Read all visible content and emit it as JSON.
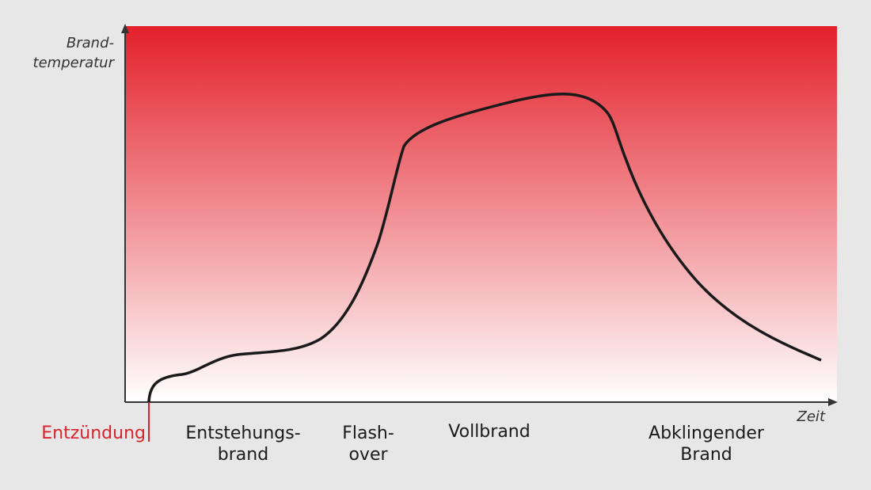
{
  "axes": {
    "y_label": [
      "Brand-",
      "temperatur"
    ],
    "x_label": "Zeit"
  },
  "phases": [
    {
      "lines": [
        "Entzündung"
      ]
    },
    {
      "lines": [
        "Entstehungs-",
        "brand"
      ]
    },
    {
      "lines": [
        "Flash-",
        "over"
      ]
    },
    {
      "lines": [
        "Vollbrand"
      ]
    },
    {
      "lines": [
        "Abklingender",
        "Brand"
      ]
    }
  ]
}
